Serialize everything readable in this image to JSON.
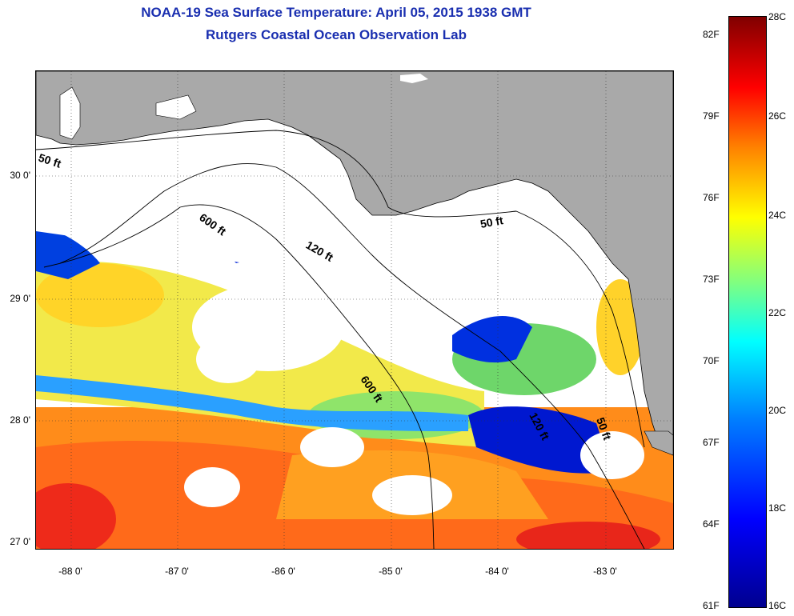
{
  "title_line1": "NOAA-19 Sea Surface Temperature:  April 05, 2015 1938 GMT",
  "title_line2": "Rutgers Coastal Ocean Observation Lab",
  "latitude_labels": [
    "30 0'",
    "29 0'",
    "28 0'",
    "27 0'"
  ],
  "longitude_labels": [
    "-88 0'",
    "-87 0'",
    "-86 0'",
    "-85 0'",
    "-84 0'",
    "-83 0'"
  ],
  "contour_labels": [
    "50 ft",
    "600 ft",
    "120 ft",
    "50 ft",
    "600 ft",
    "120 ft",
    "50 ft"
  ],
  "colorbar": {
    "fahrenheit": [
      "82F",
      "79F",
      "76F",
      "73F",
      "70F",
      "67F",
      "64F",
      "61F"
    ],
    "celsius": [
      "28C",
      "26C",
      "24C",
      "22C",
      "20C",
      "18C",
      "16C"
    ],
    "colors": [
      "#00008f",
      "#0000ff",
      "#0080ff",
      "#00ffff",
      "#80ff80",
      "#ffff00",
      "#ff8000",
      "#ff0000",
      "#800000"
    ]
  },
  "colors": {
    "land": "#a9a9a9",
    "no_data": "#ffffff",
    "title": "#1a2fb0"
  }
}
